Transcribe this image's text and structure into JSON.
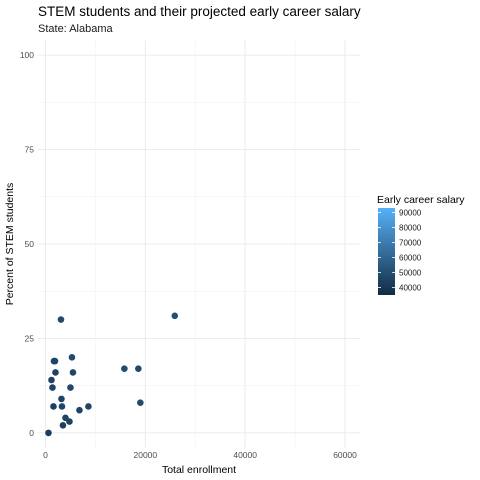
{
  "chart_data": {
    "type": "scatter",
    "title": "STEM students and their projected early career salary",
    "subtitle": "State: Alabama",
    "xlabel": "Total enrollment",
    "ylabel": "Percent of STEM students",
    "xlim": [
      -1500,
      63000
    ],
    "ylim": [
      -4,
      104
    ],
    "x_ticks": [
      0,
      20000,
      40000,
      60000
    ],
    "y_ticks": [
      0,
      25,
      50,
      75,
      100
    ],
    "grid": true,
    "legend": {
      "title": "Early career salary",
      "placement": "right",
      "min": 35000,
      "max": 93000,
      "ticks": [
        40000,
        50000,
        60000,
        70000,
        80000,
        90000
      ],
      "color_low": "#132B43",
      "color_high": "#56B1F7"
    },
    "points": [
      {
        "x": 600,
        "y": 0,
        "salary": 43000
      },
      {
        "x": 1200,
        "y": 14,
        "salary": 45000
      },
      {
        "x": 1400,
        "y": 12,
        "salary": 46000
      },
      {
        "x": 1600,
        "y": 7,
        "salary": 44000
      },
      {
        "x": 1700,
        "y": 19,
        "salary": 47000
      },
      {
        "x": 1900,
        "y": 19,
        "salary": 46000
      },
      {
        "x": 2000,
        "y": 16,
        "salary": 45000
      },
      {
        "x": 3100,
        "y": 30,
        "salary": 48000
      },
      {
        "x": 3200,
        "y": 9,
        "salary": 46000
      },
      {
        "x": 3300,
        "y": 7,
        "salary": 47000
      },
      {
        "x": 3500,
        "y": 2,
        "salary": 44000
      },
      {
        "x": 4000,
        "y": 4,
        "salary": 46000
      },
      {
        "x": 4800,
        "y": 3,
        "salary": 45000
      },
      {
        "x": 5000,
        "y": 12,
        "salary": 47000
      },
      {
        "x": 5300,
        "y": 20,
        "salary": 48000
      },
      {
        "x": 5500,
        "y": 16,
        "salary": 47000
      },
      {
        "x": 6800,
        "y": 6,
        "salary": 46000
      },
      {
        "x": 8600,
        "y": 7,
        "salary": 47000
      },
      {
        "x": 15800,
        "y": 17,
        "salary": 49000
      },
      {
        "x": 18600,
        "y": 17,
        "salary": 48000
      },
      {
        "x": 19000,
        "y": 8,
        "salary": 49000
      },
      {
        "x": 25900,
        "y": 31,
        "salary": 50000
      }
    ]
  }
}
